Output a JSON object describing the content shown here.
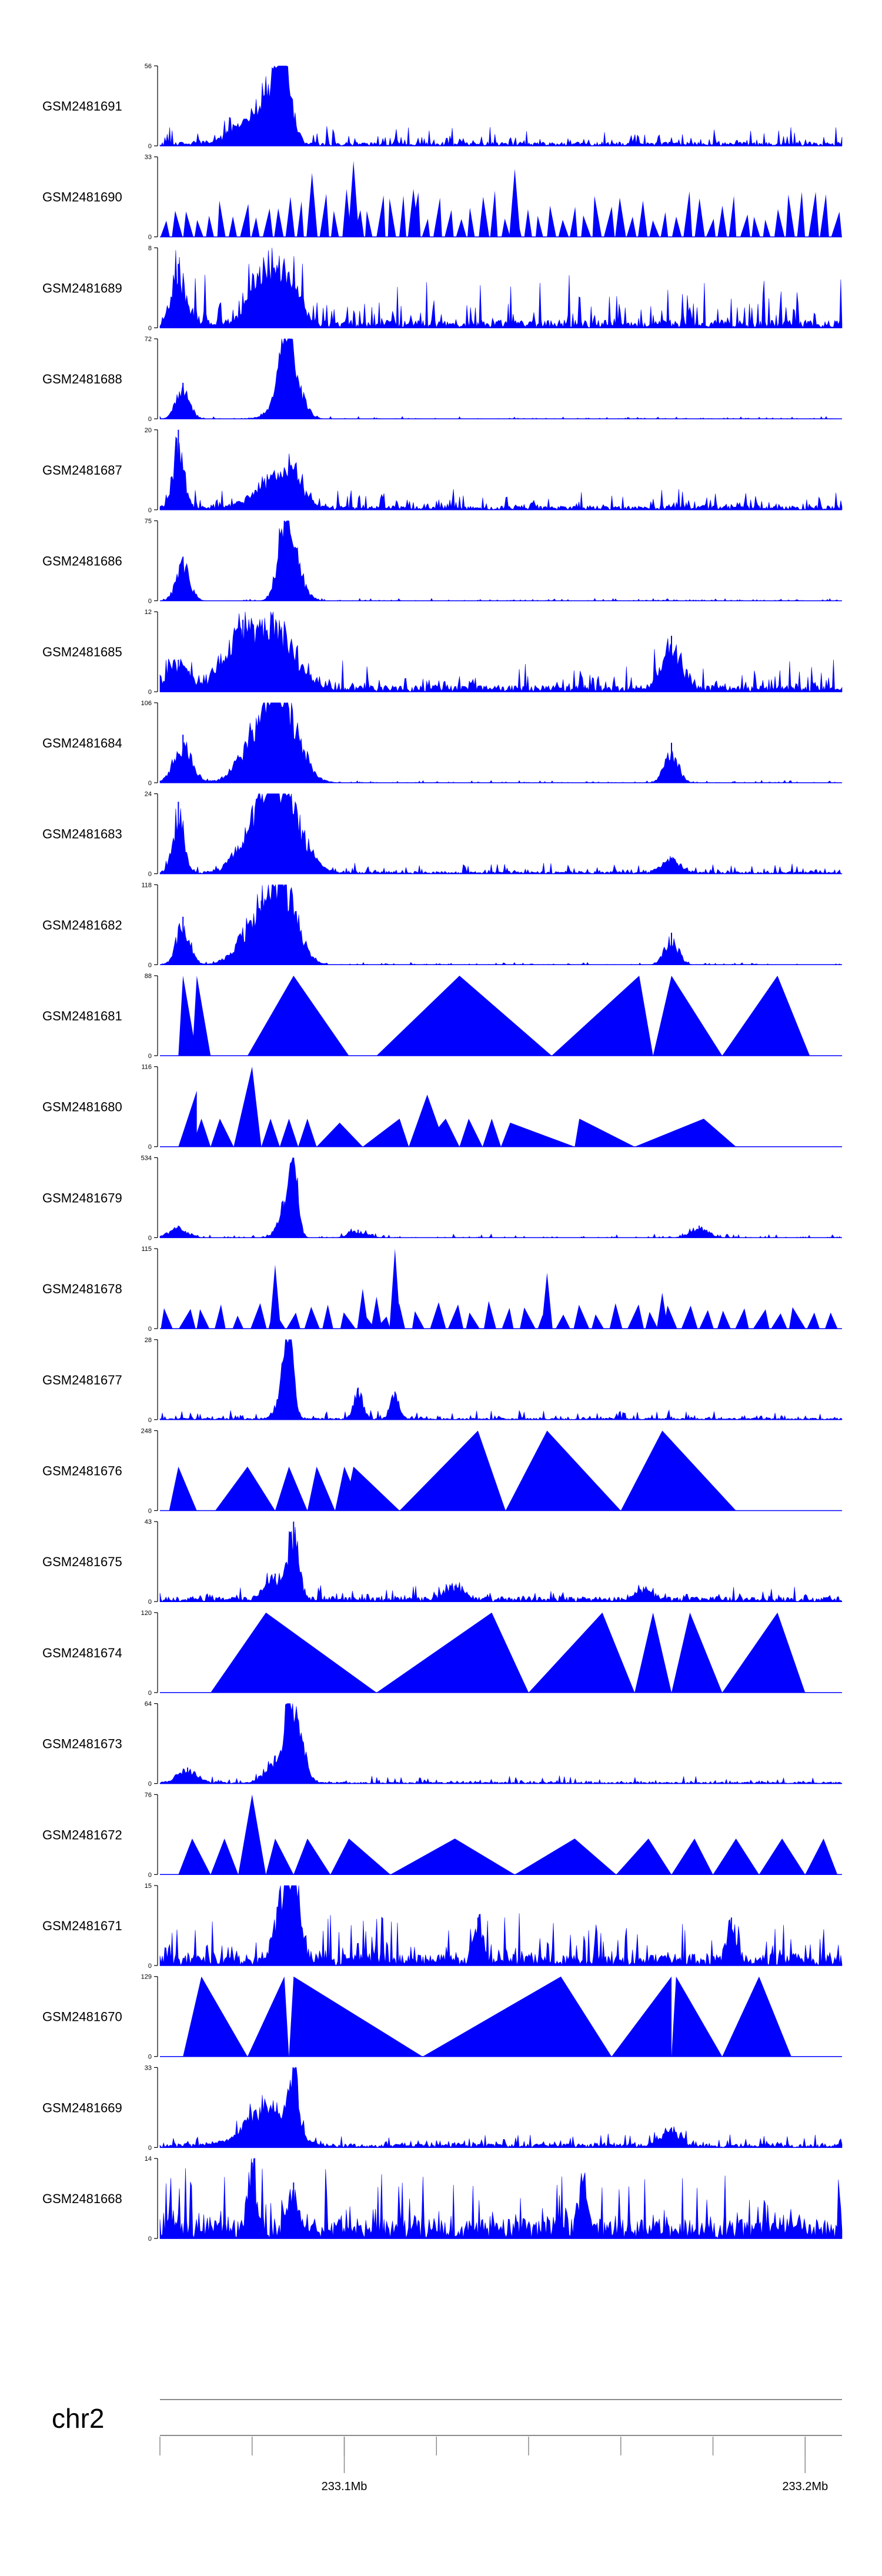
{
  "chart_data": {
    "type": "area",
    "chromosome": "chr2",
    "x_axis": {
      "labeled_ticks": [
        {
          "value": 233.1,
          "label": "233.1Mb"
        },
        {
          "value": 233.2,
          "label": "233.2Mb"
        }
      ],
      "minor_tick_step": 0.02,
      "range": [
        233.06,
        233.208
      ]
    },
    "color": "#0000ff",
    "tracks": [
      {
        "name": "GSM2481691",
        "ymax": "56",
        "ymin": "0",
        "style": "dense",
        "base": 0.05,
        "noise": 0.15,
        "peaks": [
          [
            233.087,
            1.0,
            0.0015
          ],
          [
            233.085,
            0.55,
            0.002
          ],
          [
            233.082,
            0.35,
            0.004
          ],
          [
            233.078,
            0.15,
            0.004
          ]
        ]
      },
      {
        "name": "GSM2481690",
        "ymax": "33",
        "ymin": "0",
        "style": "tri",
        "n": 60,
        "hmin": 0.2,
        "hmax": 0.6,
        "spikes": [
          [
            233.102,
            0.95
          ],
          [
            233.093,
            0.8
          ],
          [
            233.115,
            0.6
          ],
          [
            233.137,
            0.85
          ]
        ]
      },
      {
        "name": "GSM2481689",
        "ymax": "8",
        "ymin": "0",
        "style": "dense",
        "base": 0.1,
        "noise": 0.4,
        "peaks": [
          [
            233.064,
            0.8,
            0.0015
          ],
          [
            233.087,
            0.7,
            0.003
          ],
          [
            233.082,
            0.55,
            0.003
          ]
        ]
      },
      {
        "name": "GSM2481688",
        "ymax": "72",
        "ymin": "0",
        "style": "dense",
        "base": 0.0,
        "noise": 0.02,
        "peaks": [
          [
            233.065,
            0.45,
            0.0015
          ],
          [
            233.087,
            1.0,
            0.0015
          ],
          [
            233.089,
            0.6,
            0.002
          ],
          [
            233.084,
            0.1,
            0.002
          ]
        ]
      },
      {
        "name": "GSM2481687",
        "ymax": "20",
        "ymin": "0",
        "style": "dense",
        "base": 0.05,
        "noise": 0.15,
        "peaks": [
          [
            233.064,
            1.0,
            0.0012
          ],
          [
            233.088,
            0.5,
            0.003
          ],
          [
            233.083,
            0.25,
            0.004
          ]
        ]
      },
      {
        "name": "GSM2481686",
        "ymax": "75",
        "ymin": "0",
        "style": "dense",
        "base": 0.0,
        "noise": 0.02,
        "peaks": [
          [
            233.065,
            0.55,
            0.0015
          ],
          [
            233.087,
            1.0,
            0.0015
          ],
          [
            233.089,
            0.6,
            0.002
          ]
        ]
      },
      {
        "name": "GSM2481685",
        "ymax": "12",
        "ymin": "0",
        "style": "dense",
        "base": 0.08,
        "noise": 0.25,
        "peaks": [
          [
            233.078,
            0.9,
            0.004
          ],
          [
            233.086,
            0.8,
            0.004
          ],
          [
            233.064,
            0.4,
            0.002
          ],
          [
            233.171,
            0.7,
            0.002
          ]
        ]
      },
      {
        "name": "GSM2481684",
        "ymax": "106",
        "ymin": "0",
        "style": "dense",
        "base": 0.0,
        "noise": 0.02,
        "peaks": [
          [
            233.065,
            0.6,
            0.002
          ],
          [
            233.082,
            0.8,
            0.004
          ],
          [
            233.087,
            1.0,
            0.0035
          ],
          [
            233.171,
            0.5,
            0.0015
          ]
        ]
      },
      {
        "name": "GSM2481683",
        "ymax": "24",
        "ymin": "0",
        "style": "dense",
        "base": 0.03,
        "noise": 0.08,
        "peaks": [
          [
            233.064,
            0.9,
            0.0012
          ],
          [
            233.082,
            0.8,
            0.004
          ],
          [
            233.087,
            1.0,
            0.004
          ],
          [
            233.171,
            0.2,
            0.002
          ]
        ]
      },
      {
        "name": "GSM2481682",
        "ymax": "118",
        "ymin": "0",
        "style": "dense",
        "base": 0.0,
        "noise": 0.02,
        "peaks": [
          [
            233.065,
            0.6,
            0.0015
          ],
          [
            233.082,
            0.8,
            0.004
          ],
          [
            233.087,
            1.0,
            0.003
          ],
          [
            233.171,
            0.4,
            0.0015
          ]
        ]
      },
      {
        "name": "GSM2481681",
        "ymax": "88",
        "ymin": "0",
        "style": "tri",
        "triangles": [
          [
            233.064,
            233.065,
            233.068,
            1.0
          ],
          [
            233.067,
            233.068,
            233.071,
            1.0
          ],
          [
            233.079,
            233.089,
            233.101,
            1.0
          ],
          [
            233.107,
            233.125,
            233.145,
            1.0
          ],
          [
            233.145,
            233.164,
            233.167,
            1.0
          ],
          [
            233.167,
            233.171,
            233.182,
            1.0
          ],
          [
            233.182,
            233.194,
            233.201,
            1.0
          ]
        ]
      },
      {
        "name": "GSM2481680",
        "ymax": "116",
        "ymin": "0",
        "style": "tri",
        "triangles": [
          [
            233.064,
            233.068,
            233.068,
            0.7
          ],
          [
            233.067,
            233.069,
            233.071,
            0.35
          ],
          [
            233.071,
            233.073,
            233.076,
            0.35
          ],
          [
            233.076,
            233.08,
            233.082,
            1.0
          ],
          [
            233.082,
            233.084,
            233.086,
            0.35
          ],
          [
            233.086,
            233.088,
            233.09,
            0.35
          ],
          [
            233.09,
            233.092,
            233.094,
            0.35
          ],
          [
            233.094,
            233.099,
            233.104,
            0.3
          ],
          [
            233.104,
            233.112,
            233.114,
            0.35
          ],
          [
            233.114,
            233.118,
            233.122,
            0.65
          ],
          [
            233.117,
            233.122,
            233.125,
            0.35
          ],
          [
            233.125,
            233.127,
            233.13,
            0.35
          ],
          [
            233.13,
            233.132,
            233.134,
            0.35
          ],
          [
            233.134,
            233.136,
            233.15,
            0.3
          ],
          [
            233.15,
            233.151,
            233.163,
            0.35
          ],
          [
            233.163,
            233.178,
            233.185,
            0.35
          ]
        ]
      },
      {
        "name": "GSM2481679",
        "ymax": "534",
        "ymin": "0",
        "style": "dense",
        "base": 0.0,
        "noise": 0.03,
        "peaks": [
          [
            233.089,
            1.0,
            0.001
          ],
          [
            233.087,
            0.45,
            0.0015
          ],
          [
            233.064,
            0.15,
            0.002
          ],
          [
            233.103,
            0.1,
            0.002
          ],
          [
            233.177,
            0.15,
            0.002
          ]
        ]
      },
      {
        "name": "GSM2481678",
        "ymax": "115",
        "ymin": "0",
        "style": "tri",
        "n": 38,
        "hmin": 0.15,
        "hmax": 0.35,
        "spikes": [
          [
            233.085,
            0.8
          ],
          [
            233.104,
            0.5
          ],
          [
            233.111,
            1.0
          ],
          [
            233.107,
            0.4
          ],
          [
            233.144,
            0.7
          ],
          [
            233.169,
            0.45
          ]
        ]
      },
      {
        "name": "GSM2481677",
        "ymax": "28",
        "ymin": "0",
        "style": "dense",
        "base": 0.02,
        "noise": 0.07,
        "peaks": [
          [
            233.088,
            1.0,
            0.001
          ],
          [
            233.087,
            0.5,
            0.0015
          ],
          [
            233.103,
            0.4,
            0.001
          ],
          [
            233.111,
            0.35,
            0.001
          ]
        ]
      },
      {
        "name": "GSM2481676",
        "ymax": "248",
        "ymin": "0",
        "style": "tri",
        "triangles": [
          [
            233.062,
            233.064,
            233.068,
            0.55
          ],
          [
            233.072,
            233.079,
            233.085,
            0.55
          ],
          [
            233.085,
            233.088,
            233.092,
            0.55
          ],
          [
            233.092,
            233.094,
            233.098,
            0.55
          ],
          [
            233.098,
            233.1,
            233.104,
            0.55
          ],
          [
            233.1,
            233.102,
            233.112,
            0.55
          ],
          [
            233.112,
            233.129,
            233.135,
            1.0
          ],
          [
            233.135,
            233.144,
            233.16,
            1.0
          ],
          [
            233.16,
            233.169,
            233.185,
            1.0
          ]
        ]
      },
      {
        "name": "GSM2481675",
        "ymax": "43",
        "ymin": "0",
        "style": "dense",
        "base": 0.06,
        "noise": 0.1,
        "peaks": [
          [
            233.089,
            1.0,
            0.0012
          ],
          [
            233.085,
            0.35,
            0.002
          ],
          [
            233.124,
            0.2,
            0.002
          ],
          [
            233.165,
            0.15,
            0.002
          ]
        ]
      },
      {
        "name": "GSM2481674",
        "ymax": "120",
        "ymin": "0",
        "style": "tri",
        "triangles": [
          [
            233.071,
            233.083,
            233.107,
            1.0
          ],
          [
            233.107,
            233.132,
            233.14,
            1.0
          ],
          [
            233.14,
            233.156,
            233.163,
            1.0
          ],
          [
            233.163,
            233.167,
            233.171,
            1.0
          ],
          [
            233.171,
            233.175,
            233.182,
            1.0
          ],
          [
            233.182,
            233.194,
            233.2,
            1.0
          ]
        ]
      },
      {
        "name": "GSM2481673",
        "ymax": "64",
        "ymin": "0",
        "style": "dense",
        "base": 0.02,
        "noise": 0.06,
        "peaks": [
          [
            233.088,
            1.0,
            0.001
          ],
          [
            233.09,
            0.75,
            0.0015
          ],
          [
            233.085,
            0.35,
            0.002
          ],
          [
            233.066,
            0.2,
            0.002
          ]
        ]
      },
      {
        "name": "GSM2481672",
        "ymax": "76",
        "ymin": "0",
        "style": "tri",
        "triangles": [
          [
            233.064,
            233.067,
            233.071,
            0.45
          ],
          [
            233.071,
            233.074,
            233.077,
            0.45
          ],
          [
            233.077,
            233.08,
            233.083,
            1.0
          ],
          [
            233.083,
            233.085,
            233.089,
            0.45
          ],
          [
            233.089,
            233.092,
            233.097,
            0.45
          ],
          [
            233.097,
            233.101,
            233.11,
            0.45
          ],
          [
            233.11,
            233.124,
            233.137,
            0.45
          ],
          [
            233.137,
            233.15,
            233.159,
            0.45
          ],
          [
            233.159,
            233.166,
            233.171,
            0.45
          ],
          [
            233.171,
            233.176,
            233.18,
            0.45
          ],
          [
            233.18,
            233.185,
            233.19,
            0.45
          ],
          [
            233.19,
            233.195,
            233.2,
            0.45
          ],
          [
            233.2,
            233.204,
            233.207,
            0.45
          ]
        ]
      },
      {
        "name": "GSM2481671",
        "ymax": "15",
        "ymin": "0",
        "style": "dense",
        "base": 0.15,
        "noise": 0.35,
        "peaks": [
          [
            233.087,
            0.95,
            0.002
          ],
          [
            233.089,
            0.8,
            0.0015
          ],
          [
            233.129,
            0.6,
            0.001
          ],
          [
            233.184,
            0.6,
            0.001
          ]
        ]
      },
      {
        "name": "GSM2481670",
        "ymax": "129",
        "ymin": "0",
        "style": "tri",
        "triangles": [
          [
            233.065,
            233.069,
            233.079,
            1.0
          ],
          [
            233.079,
            233.087,
            233.088,
            1.0
          ],
          [
            233.088,
            233.089,
            233.117,
            1.0
          ],
          [
            233.117,
            233.147,
            233.158,
            1.0
          ],
          [
            233.158,
            233.171,
            233.171,
            1.0
          ],
          [
            233.171,
            233.172,
            233.182,
            1.0
          ],
          [
            233.182,
            233.19,
            233.197,
            1.0
          ]
        ]
      },
      {
        "name": "GSM2481669",
        "ymax": "33",
        "ymin": "0",
        "style": "dense",
        "base": 0.05,
        "noise": 0.1,
        "peaks": [
          [
            233.089,
            1.0,
            0.001
          ],
          [
            233.085,
            0.45,
            0.004
          ],
          [
            233.081,
            0.3,
            0.004
          ],
          [
            233.171,
            0.25,
            0.002
          ]
        ]
      },
      {
        "name": "GSM2481668",
        "ymax": "14",
        "ymin": "0",
        "style": "dense",
        "base": 0.25,
        "noise": 0.5,
        "peaks": [
          [
            233.08,
            0.95,
            0.001
          ],
          [
            233.089,
            0.7,
            0.001
          ],
          [
            233.152,
            0.7,
            0.001
          ]
        ]
      }
    ]
  }
}
